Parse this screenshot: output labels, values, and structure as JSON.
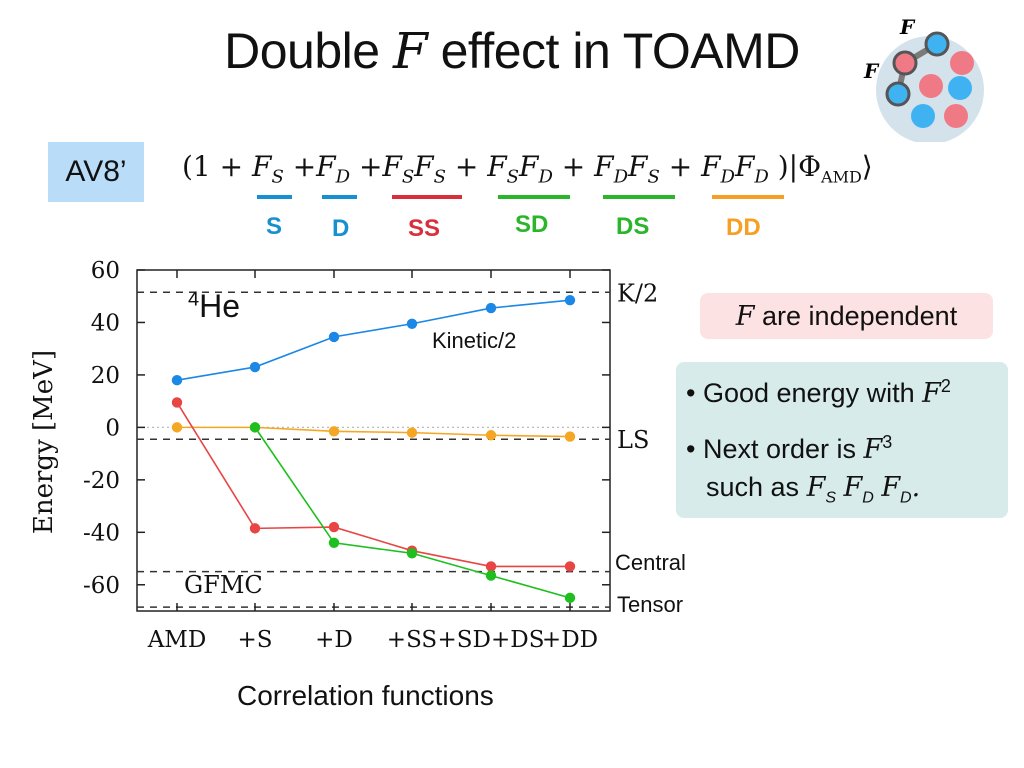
{
  "title": {
    "prefix": "Double",
    "symbol": "F",
    "suffix": "effect in TOAMD"
  },
  "badge": "AV8’",
  "formula": {
    "open": "(1 +",
    "t1": "F",
    "t1s": "S",
    "t2": "+F",
    "t2s": "D",
    "t3a": "+F",
    "t3as": "S",
    "t3b": "F",
    "t3bs": "S",
    "t4a": "+ F",
    "t4as": "S",
    "t4b": "F",
    "t4bs": "D",
    "t5a": "+ F",
    "t5as": "D",
    "t5b": "F",
    "t5bs": "S",
    "t6a": "+ F",
    "t6as": "D",
    "t6b": "F",
    "t6bs": "D",
    "close": ")|Φ",
    "closes": "AMD",
    "ket": "⟩"
  },
  "term_tags": [
    {
      "label": "S",
      "color": "#1790d0"
    },
    {
      "label": "D",
      "color": "#1790d0"
    },
    {
      "label": "SS",
      "color": "#d92f3c"
    },
    {
      "label": "SD",
      "color": "#2ab52a"
    },
    {
      "label": "DS",
      "color": "#2ab52a"
    },
    {
      "label": "DD",
      "color": "#f5a025"
    }
  ],
  "nucleus_label": {
    "mass": "4",
    "element": "He"
  },
  "notes": {
    "independent": {
      "symbol": "F",
      "text": "are independent"
    },
    "bullet1": {
      "text": "Good energy with",
      "symbol": "F",
      "power": "2"
    },
    "bullet2": {
      "text": "Next order is",
      "symbol": "F",
      "power": "3"
    },
    "bullet3": {
      "text": "such as",
      "f1": "F",
      "s1": "S",
      "f2": "F",
      "s2": "D",
      "f3": "F",
      "s3": "D",
      "end": "."
    }
  },
  "x_axis_title": "Correlation functions",
  "chart_data": {
    "type": "line",
    "title": "4He",
    "xlabel": "Correlation functions",
    "ylabel": "Energy [MeV]",
    "categories": [
      "AMD",
      "+S",
      "+D",
      "+SS",
      "+SD+DS",
      "+DD"
    ],
    "ylim": [
      -70,
      60
    ],
    "yticks": [
      60,
      40,
      20,
      0,
      -20,
      -40,
      -60
    ],
    "grid": false,
    "series": [
      {
        "name": "Kinetic/2",
        "color": "#1b87e6",
        "values": [
          18,
          23,
          34.5,
          39.5,
          45.5,
          48.5
        ]
      },
      {
        "name": "LS",
        "color": "#f5a623",
        "values": [
          0,
          0,
          -1.5,
          -2,
          -3,
          -3.5
        ]
      },
      {
        "name": "Central",
        "color": "#e84545",
        "values": [
          9.5,
          -38.5,
          -38,
          -47,
          -53,
          -53
        ]
      },
      {
        "name": "Tensor",
        "color": "#1fbf1f",
        "values": [
          null,
          0,
          -44,
          -48,
          -56.5,
          -65
        ]
      }
    ],
    "reference_lines": [
      {
        "label": "K/2",
        "value": 51.5
      },
      {
        "label": "LS",
        "value": -4.5
      },
      {
        "label": "Central",
        "value": -55
      },
      {
        "label": "Tensor",
        "value": -68.5
      }
    ],
    "annotations": {
      "kinetic": "Kinetic/2",
      "gfmc": "GFMC"
    }
  }
}
